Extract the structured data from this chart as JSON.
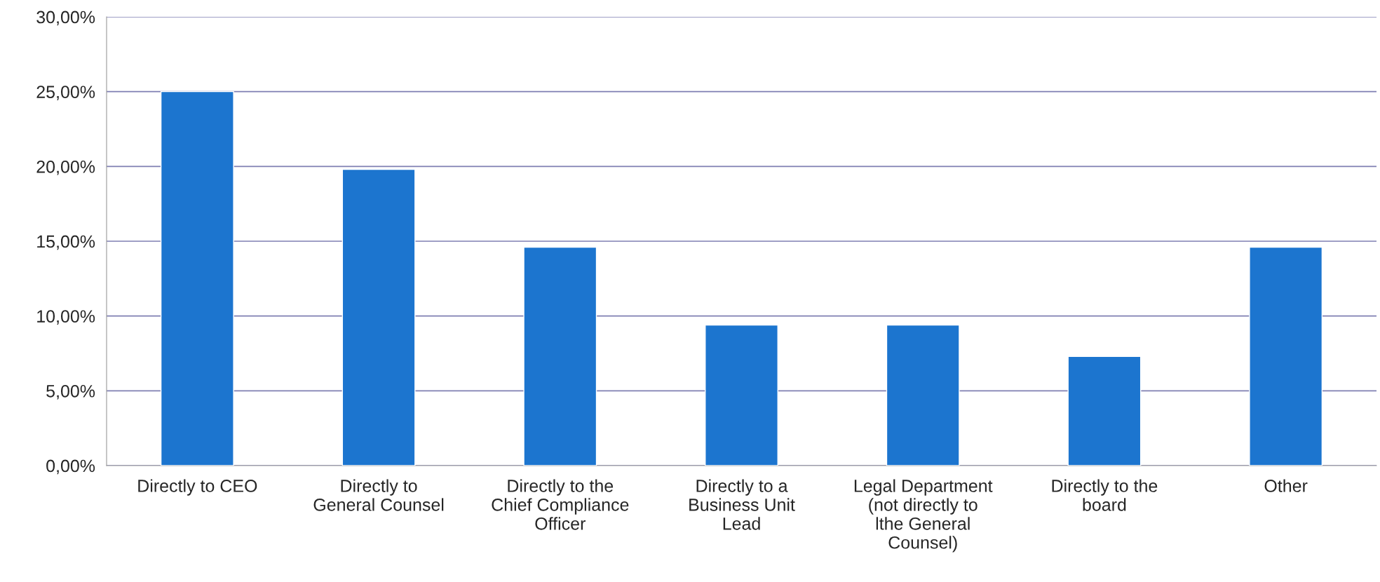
{
  "chart_data": {
    "type": "bar",
    "categories": [
      "Directly to CEO",
      "Directly to\nGeneral Counsel",
      "Directly to the\nChief Compliance\nOfficer",
      "Directly to a\nBusiness Unit\nLead",
      "Legal Department\n(not directly to\nlthe General\nCounsel)",
      "Directly to the\nboard",
      "Other"
    ],
    "values": [
      25.0,
      19.8,
      14.6,
      9.4,
      9.4,
      7.3,
      14.6
    ],
    "color": "#1c75cf",
    "ylim": [
      0,
      30
    ],
    "yticks": [
      {
        "value": 0,
        "label": "0,00%"
      },
      {
        "value": 5,
        "label": "5,00%"
      },
      {
        "value": 10,
        "label": "10,00%"
      },
      {
        "value": 15,
        "label": "15,00%"
      },
      {
        "value": 20,
        "label": "20,00%"
      },
      {
        "value": 25,
        "label": "25,00%"
      },
      {
        "value": 30,
        "label": "30,00%"
      }
    ],
    "grid": "y"
  }
}
